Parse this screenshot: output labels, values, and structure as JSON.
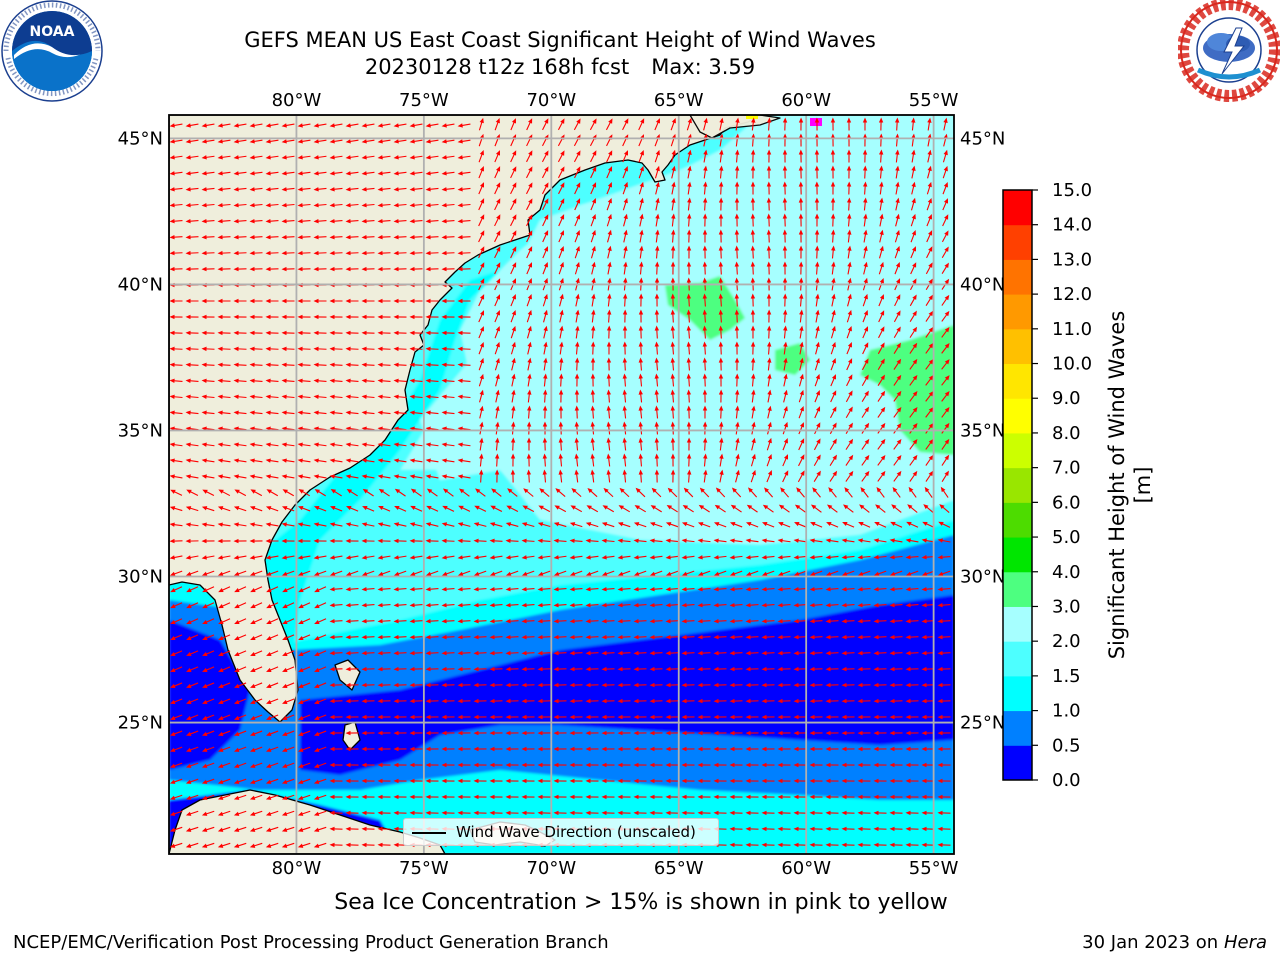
{
  "title": {
    "line1": "GEFS MEAN US East Coast Significant Height of Wind Waves",
    "line2a": "20230128 t12z 168h fcst",
    "line2b": "Max: 3.59"
  },
  "logos": {
    "left": {
      "text": "NOAA",
      "icon": "noaa-logo-icon"
    },
    "right": {
      "icon": "nws-logo-icon"
    }
  },
  "map": {
    "lon_labels": [
      "80°W",
      "75°W",
      "70°W",
      "65°W",
      "60°W",
      "55°W"
    ],
    "lon_values": [
      -80,
      -75,
      -70,
      -65,
      -60,
      -55
    ],
    "lat_labels": [
      "45°N",
      "40°N",
      "35°N",
      "30°N",
      "25°N"
    ],
    "lat_values": [
      45,
      40,
      35,
      30,
      25
    ],
    "extent": {
      "lon_min": -85,
      "lon_max": -54.2,
      "lat_min": 20.5,
      "lat_max": 45.8
    },
    "colors": {
      "land": "#efeedc",
      "vectors": "#ff0000",
      "grid": "#b0b0b0",
      "ice": "#ff00ff"
    }
  },
  "legend": {
    "label": "Wind Wave Direction (unscaled)"
  },
  "colorbar": {
    "title": "Significant Height of Wind Waves [m]",
    "levels": [
      "0.0",
      "0.5",
      "1.0",
      "1.5",
      "2.0",
      "3.0",
      "4.0",
      "5.0",
      "6.0",
      "7.0",
      "8.0",
      "9.0",
      "10.0",
      "11.0",
      "12.0",
      "13.0",
      "14.0",
      "15.0"
    ],
    "colors": [
      "#0000ff",
      "#0080ff",
      "#00ffff",
      "#4dffff",
      "#a6ffff",
      "#4dff80",
      "#00e600",
      "#4ddc00",
      "#99e600",
      "#ccff00",
      "#ffff00",
      "#ffe600",
      "#ffc000",
      "#ff9900",
      "#ff7300",
      "#ff4000",
      "#ff0000"
    ]
  },
  "seaice_note": "Sea Ice Concentration > 15% is shown in pink to yellow",
  "footer": {
    "left": "NCEP/EMC/Verification Post Processing Product Generation Branch",
    "right_date": "30 Jan 2023 on",
    "right_host": "Hera"
  }
}
